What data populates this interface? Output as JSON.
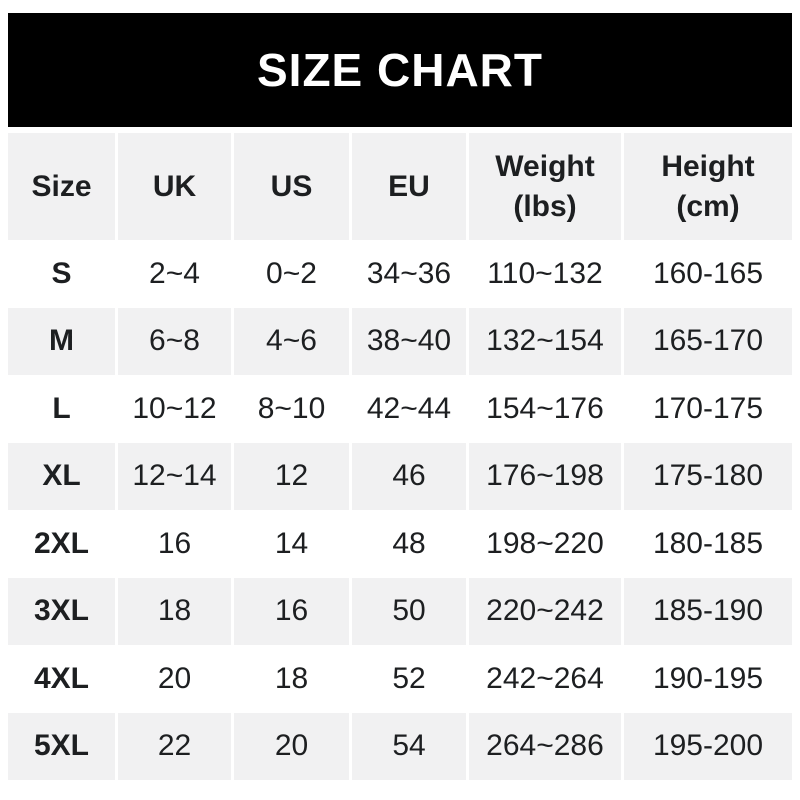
{
  "chart_data": {
    "type": "table",
    "title": "SIZE CHART",
    "columns": [
      {
        "label": "Size",
        "sub": ""
      },
      {
        "label": "UK",
        "sub": ""
      },
      {
        "label": "US",
        "sub": ""
      },
      {
        "label": "EU",
        "sub": ""
      },
      {
        "label": "Weight",
        "sub": "(lbs)"
      },
      {
        "label": "Height",
        "sub": "(cm)"
      }
    ],
    "rows": [
      {
        "size": "S",
        "uk": "2~4",
        "us": "0~2",
        "eu": "34~36",
        "weight": "110~132",
        "height": "160-165"
      },
      {
        "size": "M",
        "uk": "6~8",
        "us": "4~6",
        "eu": "38~40",
        "weight": "132~154",
        "height": "165-170"
      },
      {
        "size": "L",
        "uk": "10~12",
        "us": "8~10",
        "eu": "42~44",
        "weight": "154~176",
        "height": "170-175"
      },
      {
        "size": "XL",
        "uk": "12~14",
        "us": "12",
        "eu": "46",
        "weight": "176~198",
        "height": "175-180"
      },
      {
        "size": "2XL",
        "uk": "16",
        "us": "14",
        "eu": "48",
        "weight": "198~220",
        "height": "180-185"
      },
      {
        "size": "3XL",
        "uk": "18",
        "us": "16",
        "eu": "50",
        "weight": "220~242",
        "height": "185-190"
      },
      {
        "size": "4XL",
        "uk": "20",
        "us": "18",
        "eu": "52",
        "weight": "242~264",
        "height": "190-195"
      },
      {
        "size": "5XL",
        "uk": "22",
        "us": "20",
        "eu": "54",
        "weight": "264~286",
        "height": "195-200"
      }
    ]
  },
  "colors": {
    "banner_background": "#000000",
    "title_text": "#ffffff",
    "row_shaded": "#f1f1f2",
    "body_text": "#1d1f21",
    "page_background": "#ffffff"
  }
}
